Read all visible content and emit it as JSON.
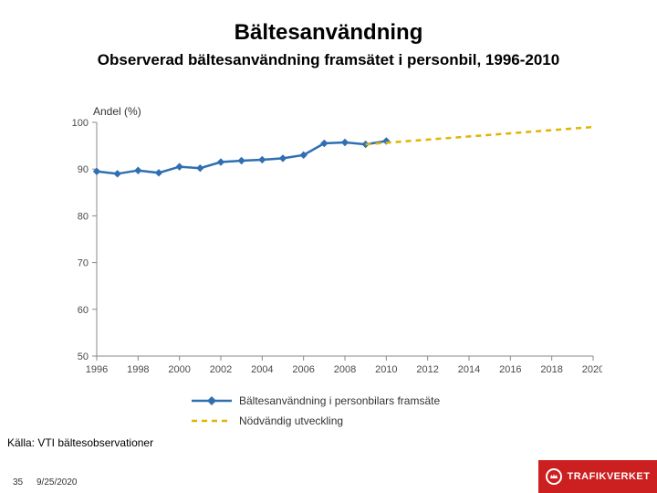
{
  "title": "Bältesanvändning",
  "subtitle": "Observerad bältesanvändning framsätet i personbil, 1996-2010",
  "source": "Källa: VTI bältesobservationer",
  "slide_number": "35",
  "date": "9/25/2020",
  "brand": "TRAFIKVERKET",
  "chart": {
    "type": "line",
    "y_axis_label": "Andel (%)",
    "ylim": [
      50,
      100
    ],
    "ytick_step": 10,
    "yticks": [
      50,
      60,
      70,
      80,
      90,
      100
    ],
    "xlim": [
      1996,
      2020
    ],
    "xtick_step": 2,
    "xticks": [
      1996,
      1998,
      2000,
      2002,
      2004,
      2006,
      2008,
      2010,
      2012,
      2014,
      2016,
      2018,
      2020
    ],
    "axis_line_color": "#888888",
    "tick_label_color": "#4a4a4a",
    "tick_fontsize": 11,
    "label_fontsize": 12,
    "background_color": "#ffffff",
    "series": [
      {
        "name": "Bältesanvändning i personbilars framsäte",
        "color": "#2f6fb2",
        "line_width": 2.5,
        "marker": "diamond",
        "marker_size": 7,
        "dash": "solid",
        "data": [
          {
            "x": 1996,
            "y": 89.5
          },
          {
            "x": 1997,
            "y": 89.0
          },
          {
            "x": 1998,
            "y": 89.7
          },
          {
            "x": 1999,
            "y": 89.2
          },
          {
            "x": 2000,
            "y": 90.5
          },
          {
            "x": 2001,
            "y": 90.2
          },
          {
            "x": 2002,
            "y": 91.5
          },
          {
            "x": 2003,
            "y": 91.8
          },
          {
            "x": 2004,
            "y": 92.0
          },
          {
            "x": 2005,
            "y": 92.3
          },
          {
            "x": 2006,
            "y": 93.0
          },
          {
            "x": 2007,
            "y": 95.5
          },
          {
            "x": 2008,
            "y": 95.7
          },
          {
            "x": 2009,
            "y": 95.3
          },
          {
            "x": 2010,
            "y": 96.0
          }
        ]
      },
      {
        "name": "Nödvändig utveckling",
        "color": "#e2b400",
        "line_width": 2.5,
        "marker": "none",
        "dash": "6,5",
        "data": [
          {
            "x": 2009,
            "y": 95.3
          },
          {
            "x": 2020,
            "y": 99.0
          }
        ]
      }
    ],
    "legend": {
      "position": "bottom-center",
      "items": [
        {
          "label": "Bältesanvändning i personbilars framsäte",
          "color": "#2f6fb2",
          "style": "line-diamond"
        },
        {
          "label": "Nödvändig utveckling",
          "color": "#e2b400",
          "style": "dashed"
        }
      ]
    }
  },
  "title_fontsize": 24,
  "subtitle_fontsize": 17,
  "source_fontsize": 12,
  "footer_fontsize": 10,
  "brand_color": "#cc1f1f"
}
